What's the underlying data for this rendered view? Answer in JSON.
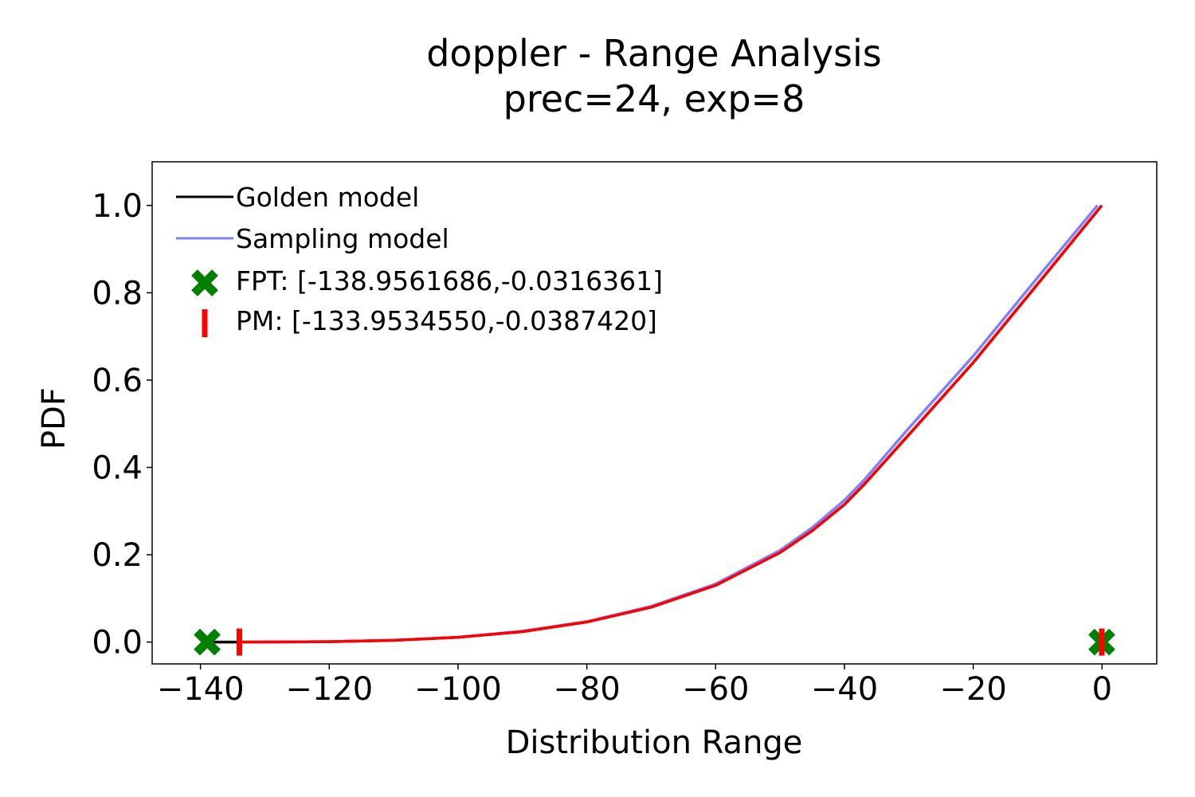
{
  "chart_data": {
    "type": "line",
    "title": "doppler - Range Analysis",
    "subtitle": "prec=24, exp=8",
    "xlabel": "Distribution Range",
    "ylabel": "PDF",
    "xlim": [
      -147.5,
      8.5
    ],
    "ylim": [
      -0.05,
      1.1
    ],
    "xticks": [
      -140,
      -120,
      -100,
      -80,
      -60,
      -40,
      -20,
      0
    ],
    "yticks": [
      0.0,
      0.2,
      0.4,
      0.6,
      0.8,
      1.0
    ],
    "xtick_labels": [
      "−140",
      "−120",
      "−100",
      "−80",
      "−60",
      "−40",
      "−20",
      "0"
    ],
    "ytick_labels": [
      "0.0",
      "0.2",
      "0.4",
      "0.6",
      "0.8",
      "1.0"
    ],
    "grid": false,
    "legend_position": "top-left",
    "series": [
      {
        "name": "Golden model",
        "color": "#000000",
        "x": [
          -138.96,
          -134,
          -120,
          -110,
          -100,
          -90,
          -80,
          -70,
          -60,
          -50,
          -45,
          -40,
          -37,
          -30,
          -20,
          -10,
          -0.03
        ],
        "y": [
          0.0,
          0.0,
          0.001,
          0.004,
          0.011,
          0.024,
          0.046,
          0.08,
          0.13,
          0.205,
          0.255,
          0.315,
          0.36,
          0.475,
          0.64,
          0.82,
          1.0
        ]
      },
      {
        "name": "Sampling model",
        "color": "#7f7fff",
        "x": [
          -134,
          -120,
          -110,
          -100,
          -90,
          -80,
          -70,
          -60,
          -50,
          -45,
          -40,
          -37,
          -30,
          -20,
          -10,
          -0.7
        ],
        "y": [
          0.0,
          0.001,
          0.004,
          0.011,
          0.025,
          0.047,
          0.082,
          0.133,
          0.21,
          0.262,
          0.325,
          0.37,
          0.49,
          0.655,
          0.835,
          1.0
        ]
      },
      {
        "name": "",
        "color": "#ff0000",
        "x": [
          -133.95,
          -120,
          -110,
          -100,
          -90,
          -80,
          -70,
          -60,
          -50,
          -45,
          -40,
          -37,
          -30,
          -20,
          -10,
          -0.04
        ],
        "y": [
          0.0,
          0.001,
          0.004,
          0.011,
          0.024,
          0.046,
          0.08,
          0.13,
          0.205,
          0.255,
          0.315,
          0.36,
          0.475,
          0.64,
          0.82,
          1.0
        ]
      }
    ],
    "markers": [
      {
        "name": "FPT",
        "legend": "FPT: [-138.9561686,-0.0316361]",
        "shape": "x",
        "color": "#008000",
        "points": [
          [
            -138.9561686,
            0.0
          ],
          [
            -0.0316361,
            0.0
          ]
        ]
      },
      {
        "name": "PM",
        "legend": "PM: [-133.9534550,-0.0387420]",
        "shape": "vline",
        "color": "#ff0000",
        "points": [
          [
            -133.953455,
            0.0
          ],
          [
            -0.038742,
            0.0
          ]
        ]
      }
    ]
  }
}
